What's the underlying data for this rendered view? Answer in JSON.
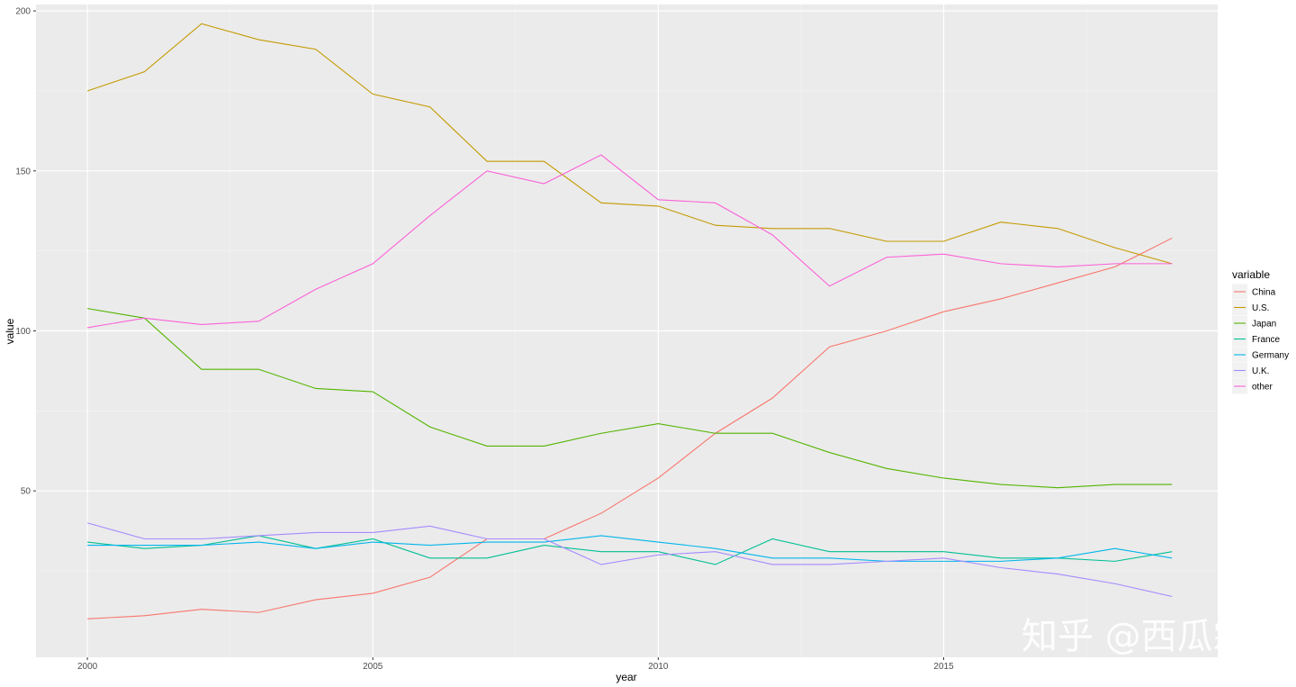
{
  "watermark": "知乎 @西瓜霜",
  "chart_data": {
    "type": "line",
    "xlabel": "year",
    "ylabel": "value",
    "legend_title": "variable",
    "legend_position": "right",
    "grid": true,
    "xlim": [
      1999.1,
      2019.8
    ],
    "ylim": [
      -2,
      202
    ],
    "x_ticks": [
      2000,
      2005,
      2010,
      2015
    ],
    "x_minor_ticks": [
      2002.5,
      2007.5,
      2012.5,
      2017.5
    ],
    "y_ticks": [
      50,
      100,
      150,
      200
    ],
    "y_minor_ticks": [
      25,
      75,
      125,
      175
    ],
    "x": [
      2000,
      2001,
      2002,
      2003,
      2004,
      2005,
      2006,
      2007,
      2008,
      2009,
      2010,
      2011,
      2012,
      2013,
      2014,
      2015,
      2016,
      2017,
      2018,
      2019
    ],
    "series": [
      {
        "name": "China",
        "color": "#F8766D",
        "values": [
          10,
          11,
          13,
          12,
          16,
          18,
          23,
          35,
          35,
          43,
          54,
          68,
          79,
          95,
          100,
          106,
          110,
          115,
          120,
          129
        ]
      },
      {
        "name": "U.S.",
        "color": "#C49A00",
        "values": [
          175,
          181,
          196,
          191,
          188,
          174,
          170,
          153,
          153,
          140,
          139,
          133,
          132,
          132,
          128,
          128,
          134,
          132,
          126,
          121
        ]
      },
      {
        "name": "Japan",
        "color": "#53B400",
        "values": [
          107,
          104,
          88,
          88,
          82,
          81,
          70,
          64,
          64,
          68,
          71,
          68,
          68,
          62,
          57,
          54,
          52,
          51,
          52,
          52
        ]
      },
      {
        "name": "France",
        "color": "#00C094",
        "values": [
          34,
          32,
          33,
          36,
          32,
          35,
          29,
          29,
          33,
          31,
          31,
          27,
          35,
          31,
          31,
          31,
          29,
          29,
          28,
          31
        ]
      },
      {
        "name": "Germany",
        "color": "#00B6EB",
        "values": [
          33,
          33,
          33,
          34,
          32,
          34,
          33,
          34,
          34,
          36,
          34,
          32,
          29,
          29,
          28,
          28,
          28,
          29,
          32,
          29
        ]
      },
      {
        "name": "U.K.",
        "color": "#A58AFF",
        "values": [
          40,
          35,
          35,
          36,
          37,
          37,
          39,
          35,
          35,
          27,
          30,
          31,
          27,
          27,
          28,
          29,
          26,
          24,
          21,
          17
        ]
      },
      {
        "name": "other",
        "color": "#FB61D7",
        "values": [
          101,
          104,
          102,
          103,
          113,
          121,
          136,
          150,
          146,
          155,
          141,
          140,
          130,
          114,
          123,
          124,
          121,
          120,
          121,
          121
        ]
      }
    ]
  }
}
